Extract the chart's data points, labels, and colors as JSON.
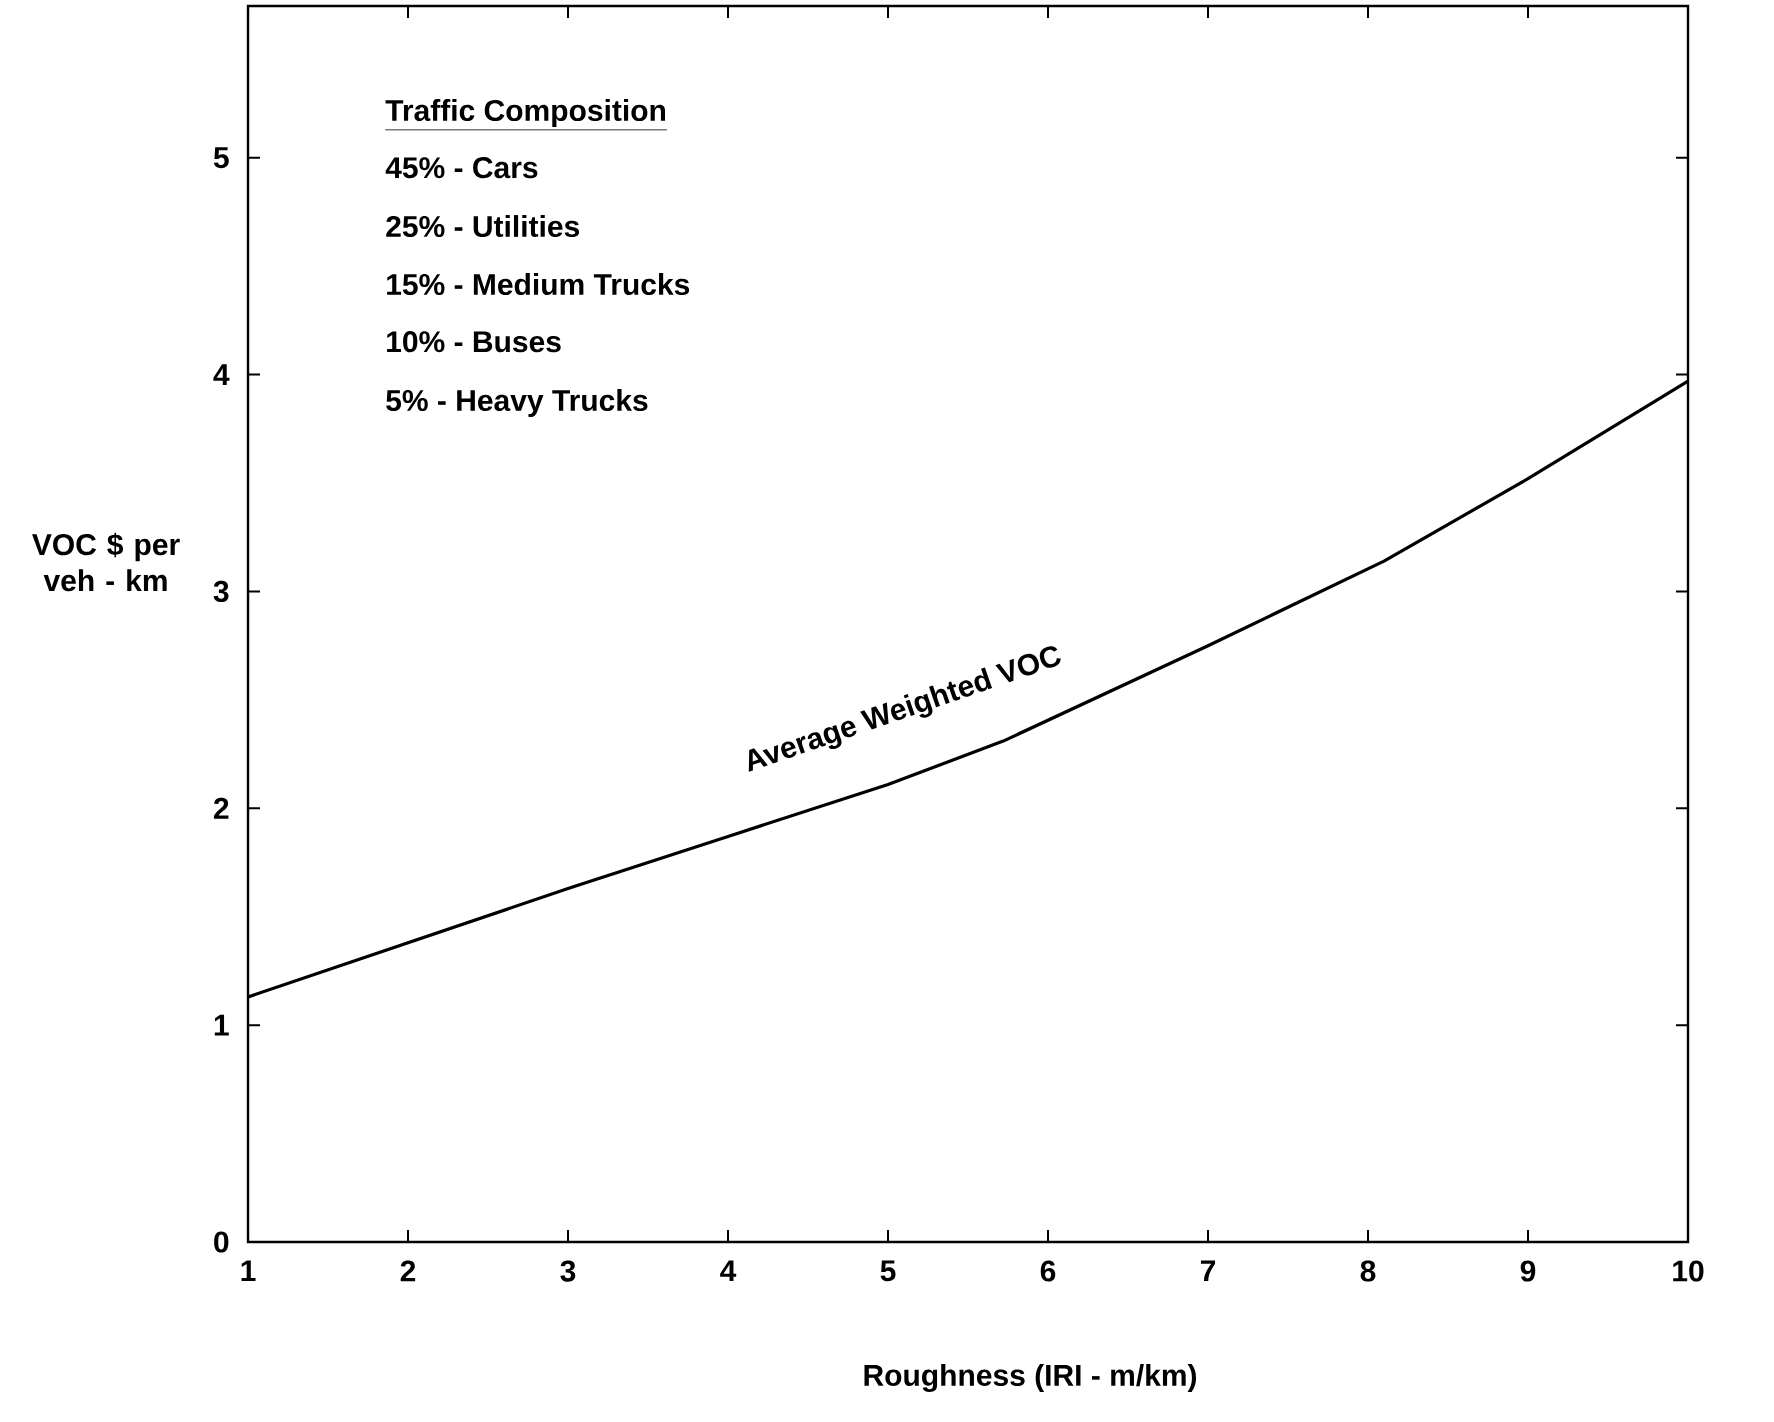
{
  "chart_data": {
    "type": "line",
    "xlabel": "Roughness  (IRI  - m/km)",
    "ylabel": "VOC $ per veh - km",
    "x": [
      1,
      2,
      3,
      4,
      5,
      5.72,
      7,
      8.1,
      9,
      10
    ],
    "series": [
      {
        "color": "#000000",
        "values": [
          1.13,
          1.38,
          1.63,
          1.87,
          2.11,
          2.31,
          2.75,
          3.14,
          3.52,
          3.97
        ]
      }
    ],
    "xlim": [
      1,
      10
    ],
    "ylim": [
      0,
      5.7
    ],
    "xticks": [
      1,
      2,
      3,
      4,
      5,
      6,
      7,
      8,
      9,
      10
    ],
    "yticks": [
      0,
      1,
      2,
      3,
      4,
      5
    ],
    "grid": false,
    "marker": "none",
    "line_style": "solid",
    "annotations": [
      "Average Weighted VOC",
      "Traffic Composition",
      "45% - Cars",
      "25% - Utilities",
      "15% - Medium Trucks",
      "10% - Buses",
      "5% - Heavy Trucks"
    ]
  }
}
